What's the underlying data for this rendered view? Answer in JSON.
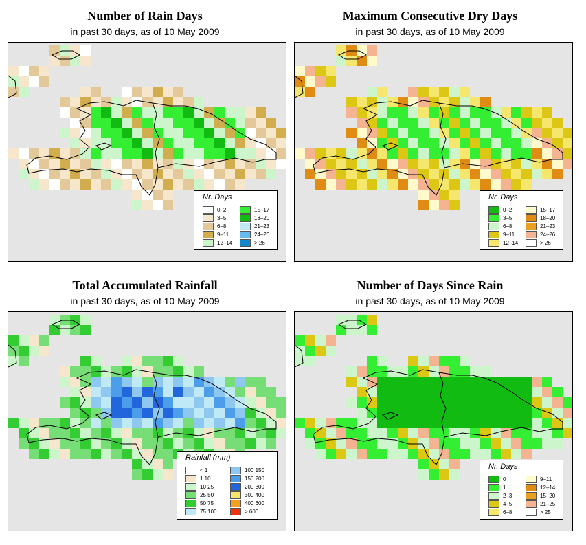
{
  "panels": [
    {
      "id": "rain-days",
      "title": "Number of Rain Days",
      "subtitle": "in past 30 days, as of  10 May 2009",
      "legend": {
        "title": "Nr. Days",
        "items": [
          {
            "label": "0–2",
            "color": "#ffffff"
          },
          {
            "label": "3–5",
            "color": "#f5e6cc"
          },
          {
            "label": "6–8",
            "color": "#e3c99a"
          },
          {
            "label": "9–11",
            "color": "#d1ad4e"
          },
          {
            "label": "12–14",
            "color": "#ccf5cc"
          },
          {
            "label": "15–17",
            "color": "#33ee33"
          },
          {
            "label": "18–20",
            "color": "#11bb11"
          },
          {
            "label": "21–23",
            "color": "#bfeaf5"
          },
          {
            "label": "24–26",
            "color": "#66bbee"
          },
          {
            "label": "> 26",
            "color": "#1188cc"
          }
        ]
      }
    },
    {
      "id": "dry-days",
      "title": "Maximum Consecutive Dry Days",
      "subtitle": "in past 30 days, as of  10 May 2009",
      "legend": {
        "title": "Nr. Days",
        "items": [
          {
            "label": "0–2",
            "color": "#11bb11"
          },
          {
            "label": "3–5",
            "color": "#33ee33"
          },
          {
            "label": "6–8",
            "color": "#ccf5cc"
          },
          {
            "label": "9–11",
            "color": "#dcc814"
          },
          {
            "label": "12–14",
            "color": "#f5e66e"
          },
          {
            "label": "15–17",
            "color": "#fffacc"
          },
          {
            "label": "18–20",
            "color": "#e08c14"
          },
          {
            "label": "21–23",
            "color": "#e8a01e"
          },
          {
            "label": "24–26",
            "color": "#f5b491"
          },
          {
            "label": "> 26",
            "color": "#ffffff"
          }
        ]
      }
    },
    {
      "id": "rainfall",
      "title": "Total Accumulated Rainfall",
      "subtitle": "in past 30 days, as of  10 May 2009",
      "legend": {
        "title": "Rainfall (mm)",
        "items": [
          {
            "label": "< 1",
            "color": "#ffffff"
          },
          {
            "label": "1    10",
            "color": "#f5e6cc"
          },
          {
            "label": "10    25",
            "color": "#ccf5cc"
          },
          {
            "label": "25    50",
            "color": "#77dd77"
          },
          {
            "label": "50    75",
            "color": "#33cc33"
          },
          {
            "label": "75  100",
            "color": "#bfeaf5"
          },
          {
            "label": "100  150",
            "color": "#8ec8f0"
          },
          {
            "label": "150  200",
            "color": "#4c9eea"
          },
          {
            "label": "200  300",
            "color": "#2266dd"
          },
          {
            "label": "300  400",
            "color": "#f5e66e"
          },
          {
            "label": "400  600",
            "color": "#f5a020"
          },
          {
            "label": "> 600",
            "color": "#ee3311"
          }
        ]
      }
    },
    {
      "id": "days-since",
      "title": "Number of Days Since Rain",
      "subtitle": "in past 30 days, as of  10 May 2009",
      "legend": {
        "title": "Nr. Days",
        "items": [
          {
            "label": "0",
            "color": "#11bb11"
          },
          {
            "label": "1",
            "color": "#33ee33"
          },
          {
            "label": "2–3",
            "color": "#ccf5cc"
          },
          {
            "label": "4–5",
            "color": "#dcc814"
          },
          {
            "label": "6–8",
            "color": "#f5e66e"
          },
          {
            "label": "9–11",
            "color": "#fffacc"
          },
          {
            "label": "12–14",
            "color": "#e08c14"
          },
          {
            "label": "15–20",
            "color": "#e8a01e"
          },
          {
            "label": "21–25",
            "color": "#f5b491"
          },
          {
            "label": "> 25",
            "color": "#ffffff"
          }
        ]
      }
    }
  ]
}
